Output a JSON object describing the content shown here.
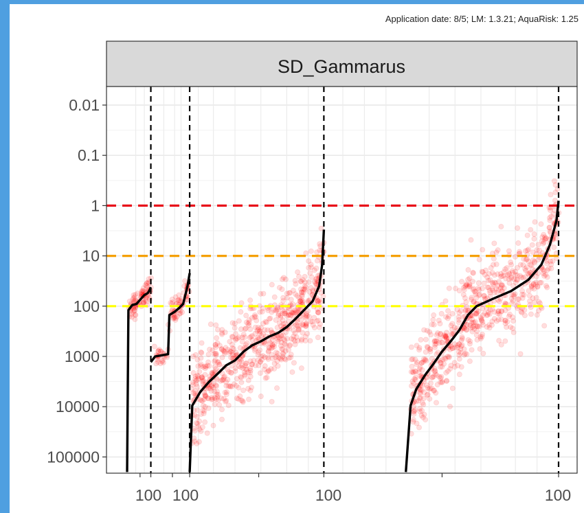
{
  "caption": "Application date: 8/5; LM: 1.3.21; AquaRisk: 1.25",
  "colors": {
    "frame": "#4f9fe0",
    "points": "#ff0000",
    "curve": "#000000",
    "threshold_1": "#e8121a",
    "threshold_10": "#f5a000",
    "threshold_100": "#ffff00",
    "strip": "#d9d9d9"
  },
  "chart_data": {
    "type": "scatter",
    "facet": "SD_Gammarus",
    "y_scale": "log-reversed",
    "ylim": [
      0.005,
      200000
    ],
    "y_ticks": [
      "0.01",
      "0.1",
      "1",
      "10",
      "100",
      "1000",
      "10000",
      "100000"
    ],
    "x_tick_labels": [
      "100",
      "100",
      "100",
      "100"
    ],
    "grid": true,
    "thresholds": [
      {
        "value": 1,
        "color": "red",
        "style": "dashed"
      },
      {
        "value": 10,
        "color": "orange",
        "style": "dashed"
      },
      {
        "value": 100,
        "color": "yellow",
        "style": "dashed"
      }
    ],
    "segments": [
      {
        "x_start": 0.0,
        "x_end": 0.055,
        "curve": [
          [
            0.0,
            200000
          ],
          [
            0.003,
            120
          ],
          [
            0.012,
            95
          ],
          [
            0.022,
            90
          ],
          [
            0.03,
            75
          ],
          [
            0.04,
            60
          ],
          [
            0.048,
            55
          ],
          [
            0.052,
            48
          ],
          [
            0.055,
            42
          ]
        ]
      },
      {
        "x_start": 0.055,
        "x_end": 0.145,
        "curve": [
          [
            0.055,
            1300
          ],
          [
            0.065,
            1000
          ],
          [
            0.08,
            950
          ],
          [
            0.095,
            900
          ],
          [
            0.098,
            150
          ],
          [
            0.11,
            130
          ],
          [
            0.12,
            110
          ],
          [
            0.13,
            90
          ],
          [
            0.14,
            40
          ],
          [
            0.145,
            22
          ]
        ]
      },
      {
        "x_start": 0.145,
        "x_end": 0.456,
        "curve": [
          [
            0.145,
            200000
          ],
          [
            0.151,
            9500
          ],
          [
            0.17,
            5000
          ],
          [
            0.19,
            3200
          ],
          [
            0.21,
            2200
          ],
          [
            0.23,
            1500
          ],
          [
            0.25,
            1200
          ],
          [
            0.27,
            800
          ],
          [
            0.29,
            600
          ],
          [
            0.31,
            500
          ],
          [
            0.33,
            400
          ],
          [
            0.35,
            340
          ],
          [
            0.37,
            260
          ],
          [
            0.39,
            180
          ],
          [
            0.41,
            120
          ],
          [
            0.43,
            80
          ],
          [
            0.445,
            40
          ],
          [
            0.452,
            15
          ],
          [
            0.456,
            3
          ]
        ]
      },
      {
        "x_start": 0.456,
        "x_end": 1.0,
        "curve": [
          [
            0.646,
            200000
          ],
          [
            0.657,
            9500
          ],
          [
            0.67,
            4500
          ],
          [
            0.69,
            2400
          ],
          [
            0.71,
            1400
          ],
          [
            0.73,
            800
          ],
          [
            0.75,
            500
          ],
          [
            0.77,
            300
          ],
          [
            0.79,
            150
          ],
          [
            0.81,
            100
          ],
          [
            0.85,
            70
          ],
          [
            0.89,
            50
          ],
          [
            0.93,
            30
          ],
          [
            0.96,
            15
          ],
          [
            0.98,
            6
          ],
          [
            0.995,
            2
          ],
          [
            1.0,
            0.8
          ]
        ]
      }
    ],
    "segment_boundaries": [
      0.055,
      0.145,
      0.456,
      1.0
    ]
  }
}
